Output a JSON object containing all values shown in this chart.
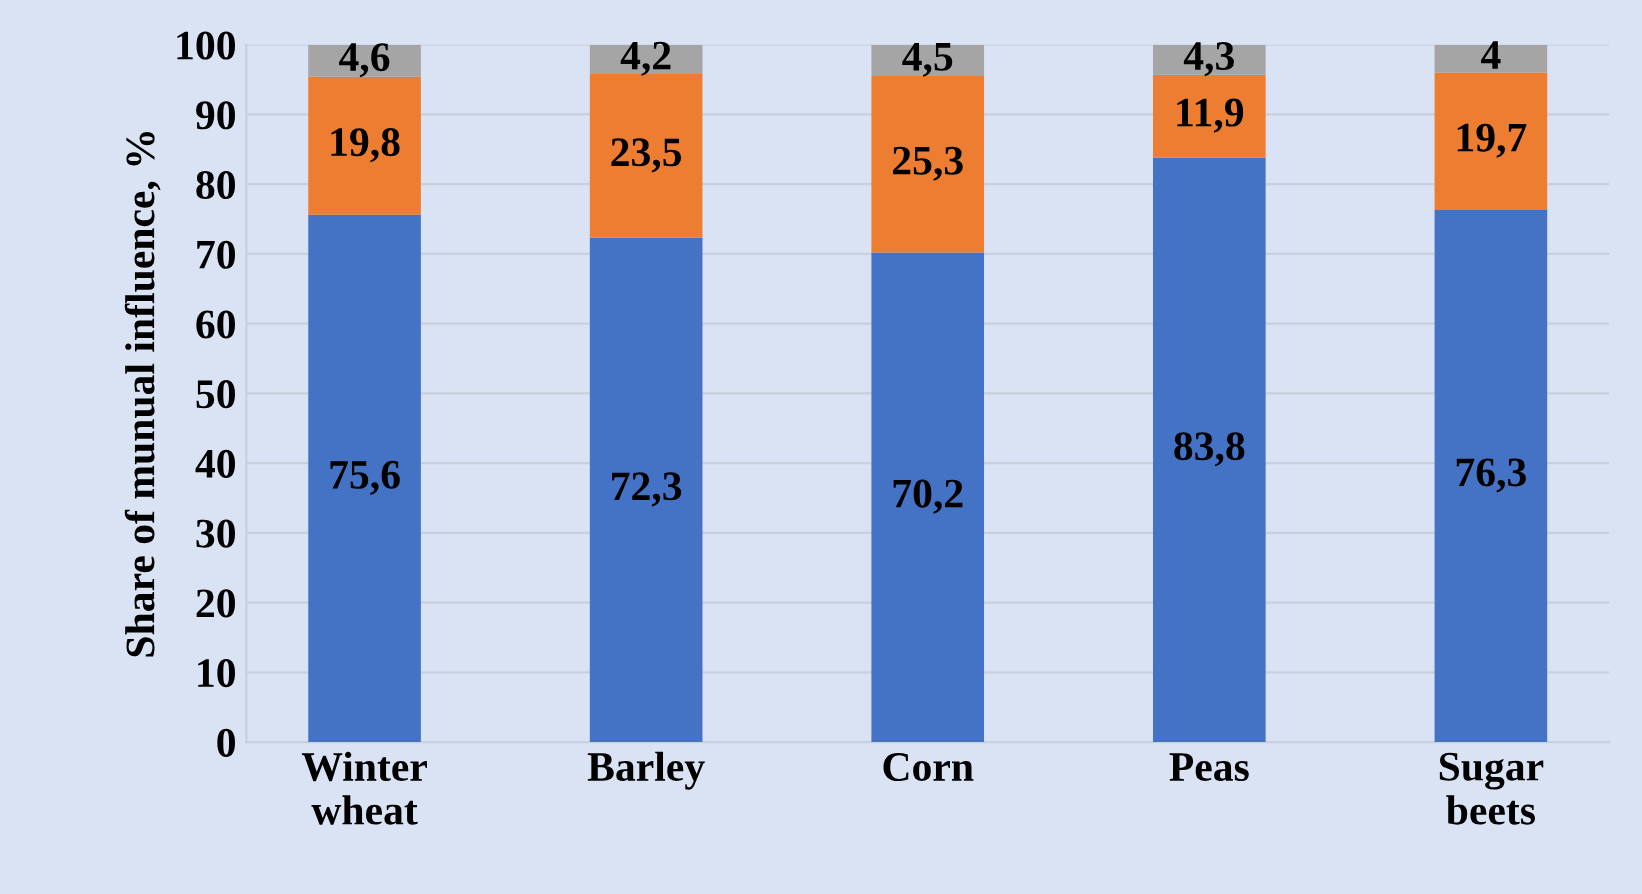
{
  "chart_data": {
    "type": "bar",
    "stacked": true,
    "ylabel": "Share of munual influence, %",
    "categories": [
      "Winter\nwheat",
      "Barley",
      "Corn",
      "Peas",
      "Sugar\nbeets"
    ],
    "series": [
      {
        "color": "#4472c4",
        "values": [
          75.6,
          72.3,
          70.2,
          83.8,
          76.3
        ],
        "value_labels": [
          "75,6",
          "72,3",
          "70,2",
          "83,8",
          "76,3"
        ]
      },
      {
        "color": "#ed7d31",
        "values": [
          19.8,
          23.5,
          25.3,
          11.9,
          19.7
        ],
        "value_labels": [
          "19,8",
          "23,5",
          "25,3",
          "11,9",
          "19,7"
        ]
      },
      {
        "color": "#a5a5a5",
        "values": [
          4.6,
          4.2,
          4.5,
          4.3,
          4
        ],
        "value_labels": [
          "4,6",
          "4,2",
          "4,5",
          "4,3",
          "4"
        ]
      }
    ],
    "ylim": [
      0,
      100
    ],
    "yticks": [
      0,
      10,
      20,
      30,
      40,
      50,
      60,
      70,
      80,
      90,
      100
    ],
    "grid": "y",
    "legend": false
  }
}
